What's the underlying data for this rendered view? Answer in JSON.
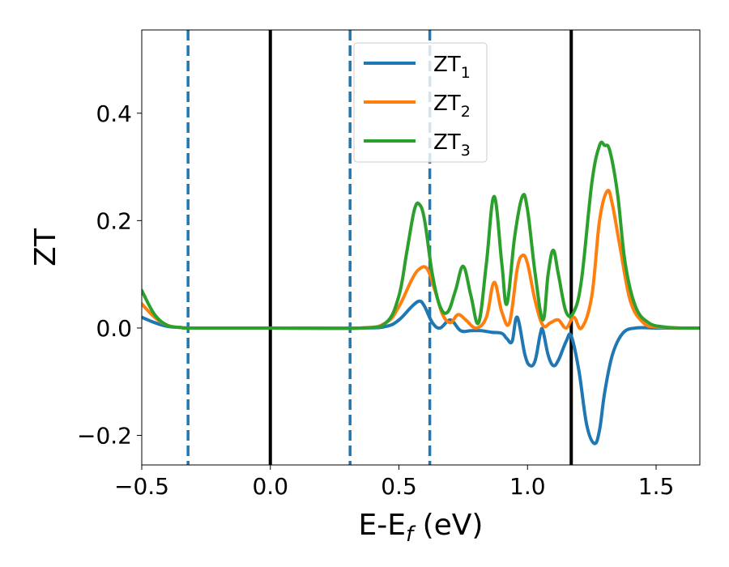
{
  "chart_data": {
    "type": "line",
    "xlabel": "E-E",
    "xlabel_sub": "f",
    "xlabel_unit": " (eV)",
    "ylabel": "ZT",
    "xlim": [
      -0.5,
      1.67
    ],
    "ylim": [
      -0.255,
      0.555
    ],
    "xticks": [
      -0.5,
      0.0,
      0.5,
      1.0,
      1.5
    ],
    "xtick_labels": [
      "−0.5",
      "0.0",
      "0.5",
      "1.0",
      "1.5"
    ],
    "yticks": [
      -0.2,
      0.0,
      0.2,
      0.4
    ],
    "ytick_labels": [
      "−0.2",
      "0.0",
      "0.2",
      "0.4"
    ],
    "grid": false,
    "legend_position": "top-center",
    "vlines": [
      {
        "x": -0.32,
        "style": "dashed",
        "color": "#1f77b4"
      },
      {
        "x": 0.0,
        "style": "solid",
        "color": "#000000"
      },
      {
        "x": 0.31,
        "style": "dashed",
        "color": "#1f77b4"
      },
      {
        "x": 0.62,
        "style": "dashed",
        "color": "#1f77b4"
      },
      {
        "x": 1.17,
        "style": "solid",
        "color": "#000000"
      }
    ],
    "series": [
      {
        "name": "ZT",
        "name_sub": "1",
        "color": "#1f77b4",
        "x": [
          -0.5,
          -0.45,
          -0.4,
          -0.35,
          -0.3,
          0.0,
          0.35,
          0.45,
          0.5,
          0.55,
          0.58,
          0.6,
          0.63,
          0.66,
          0.7,
          0.74,
          0.78,
          0.82,
          0.86,
          0.9,
          0.92,
          0.94,
          0.96,
          0.99,
          1.01,
          1.03,
          1.05,
          1.06,
          1.08,
          1.1,
          1.12,
          1.15,
          1.17,
          1.2,
          1.23,
          1.26,
          1.28,
          1.3,
          1.33,
          1.37,
          1.42,
          1.5,
          1.6,
          1.67
        ],
        "y": [
          0.02,
          0.01,
          0.003,
          0.001,
          0.0,
          0.0,
          0.0,
          0.003,
          0.015,
          0.04,
          0.05,
          0.04,
          0.01,
          0.0,
          0.015,
          -0.005,
          -0.005,
          -0.005,
          -0.008,
          -0.01,
          -0.02,
          -0.025,
          0.02,
          -0.05,
          -0.07,
          -0.06,
          -0.01,
          -0.005,
          -0.05,
          -0.07,
          -0.06,
          -0.025,
          -0.015,
          -0.08,
          -0.18,
          -0.215,
          -0.19,
          -0.12,
          -0.05,
          -0.01,
          0.0,
          0.0,
          0.0,
          0.0
        ]
      },
      {
        "name": "ZT",
        "name_sub": "2",
        "color": "#ff7f0e",
        "x": [
          -0.5,
          -0.45,
          -0.4,
          -0.35,
          -0.3,
          0.0,
          0.35,
          0.45,
          0.5,
          0.55,
          0.58,
          0.61,
          0.64,
          0.67,
          0.7,
          0.73,
          0.76,
          0.8,
          0.84,
          0.87,
          0.9,
          0.93,
          0.96,
          0.98,
          1.0,
          1.03,
          1.06,
          1.09,
          1.12,
          1.15,
          1.18,
          1.21,
          1.25,
          1.28,
          1.31,
          1.33,
          1.36,
          1.4,
          1.45,
          1.5,
          1.6,
          1.67
        ],
        "y": [
          0.045,
          0.02,
          0.005,
          0.001,
          0.0,
          0.0,
          0.0,
          0.01,
          0.04,
          0.09,
          0.11,
          0.11,
          0.07,
          0.025,
          0.01,
          0.025,
          0.015,
          0.0,
          0.02,
          0.085,
          0.03,
          0.01,
          0.11,
          0.135,
          0.12,
          0.05,
          0.005,
          0.01,
          0.015,
          0.0,
          0.02,
          0.0,
          0.06,
          0.2,
          0.255,
          0.23,
          0.15,
          0.05,
          0.01,
          0.002,
          0.0,
          0.0
        ]
      },
      {
        "name": "ZT",
        "name_sub": "3",
        "color": "#2ca02c",
        "x": [
          -0.5,
          -0.45,
          -0.4,
          -0.35,
          -0.3,
          0.0,
          0.35,
          0.45,
          0.5,
          0.53,
          0.56,
          0.58,
          0.6,
          0.63,
          0.66,
          0.69,
          0.72,
          0.75,
          0.78,
          0.81,
          0.84,
          0.87,
          0.9,
          0.92,
          0.95,
          0.98,
          1.0,
          1.03,
          1.06,
          1.08,
          1.1,
          1.12,
          1.15,
          1.18,
          1.21,
          1.25,
          1.28,
          1.3,
          1.32,
          1.35,
          1.38,
          1.42,
          1.47,
          1.53,
          1.6,
          1.67
        ],
        "y": [
          0.07,
          0.025,
          0.005,
          0.001,
          0.0,
          0.0,
          0.0,
          0.01,
          0.06,
          0.14,
          0.22,
          0.23,
          0.2,
          0.1,
          0.04,
          0.03,
          0.07,
          0.115,
          0.06,
          0.01,
          0.12,
          0.245,
          0.12,
          0.045,
          0.17,
          0.245,
          0.22,
          0.1,
          0.015,
          0.1,
          0.145,
          0.1,
          0.03,
          0.03,
          0.09,
          0.27,
          0.34,
          0.34,
          0.33,
          0.25,
          0.12,
          0.04,
          0.01,
          0.002,
          0.0,
          0.0
        ]
      }
    ]
  }
}
